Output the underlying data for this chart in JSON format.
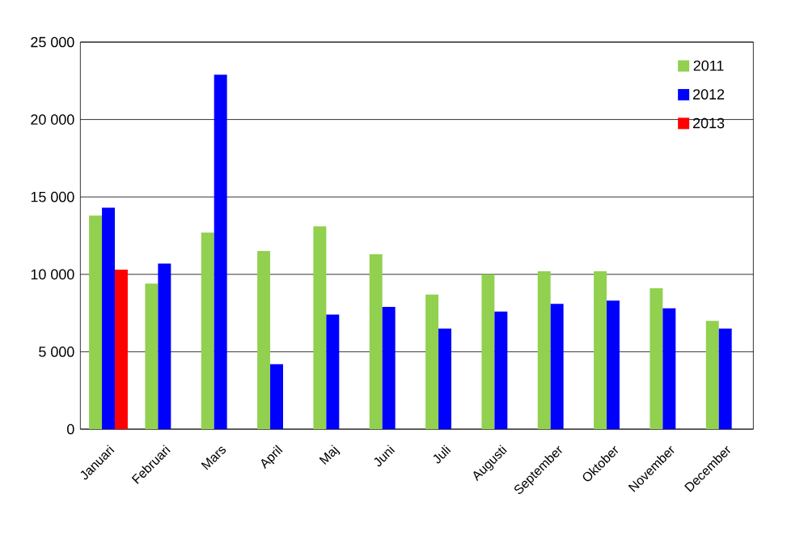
{
  "chart_data": {
    "type": "bar",
    "categories": [
      "Januari",
      "Februari",
      "Mars",
      "April",
      "Maj",
      "Juni",
      "Juli",
      "Augusti",
      "September",
      "Oktober",
      "November",
      "December"
    ],
    "series": [
      {
        "name": "2011",
        "color": "#92d050",
        "values": [
          13800,
          9400,
          12700,
          11500,
          13100,
          11300,
          8700,
          10000,
          10200,
          10200,
          9100,
          7000
        ]
      },
      {
        "name": "2012",
        "color": "#0000ff",
        "values": [
          14300,
          10700,
          22900,
          4200,
          7400,
          7900,
          6500,
          7600,
          8100,
          8300,
          7800,
          6500
        ]
      },
      {
        "name": "2013",
        "color": "#ff0000",
        "values": [
          10300,
          null,
          null,
          null,
          null,
          null,
          null,
          null,
          null,
          null,
          null,
          null
        ]
      }
    ],
    "ylim": [
      0,
      25000
    ],
    "yticks": [
      {
        "value": 0,
        "label": "0"
      },
      {
        "value": 5000,
        "label": "5 000"
      },
      {
        "value": 10000,
        "label": "10 000"
      },
      {
        "value": 15000,
        "label": "15 000"
      },
      {
        "value": 20000,
        "label": "20 000"
      },
      {
        "value": 25000,
        "label": "25 000"
      }
    ],
    "grid": "y",
    "legend": "top right"
  }
}
